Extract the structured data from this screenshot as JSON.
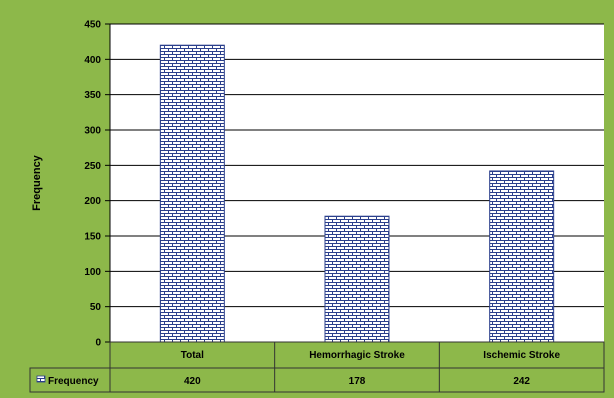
{
  "chart_data": {
    "type": "bar",
    "title": "",
    "xlabel": "",
    "ylabel": "Frequency",
    "ylim": [
      0,
      450
    ],
    "yticks": [
      0,
      50,
      100,
      150,
      200,
      250,
      300,
      350,
      400,
      450
    ],
    "categories": [
      "Total",
      "Hemorrhagic Stroke",
      "Ischemic Stroke"
    ],
    "series": [
      {
        "name": "Frequency",
        "values": [
          420,
          178,
          242
        ]
      }
    ],
    "legend": "data-table",
    "grid": true,
    "colors": {
      "background": "#8db84a",
      "plot": "#ffffff",
      "bar_pattern": "#2b3f8c",
      "grid": "#000000"
    }
  }
}
